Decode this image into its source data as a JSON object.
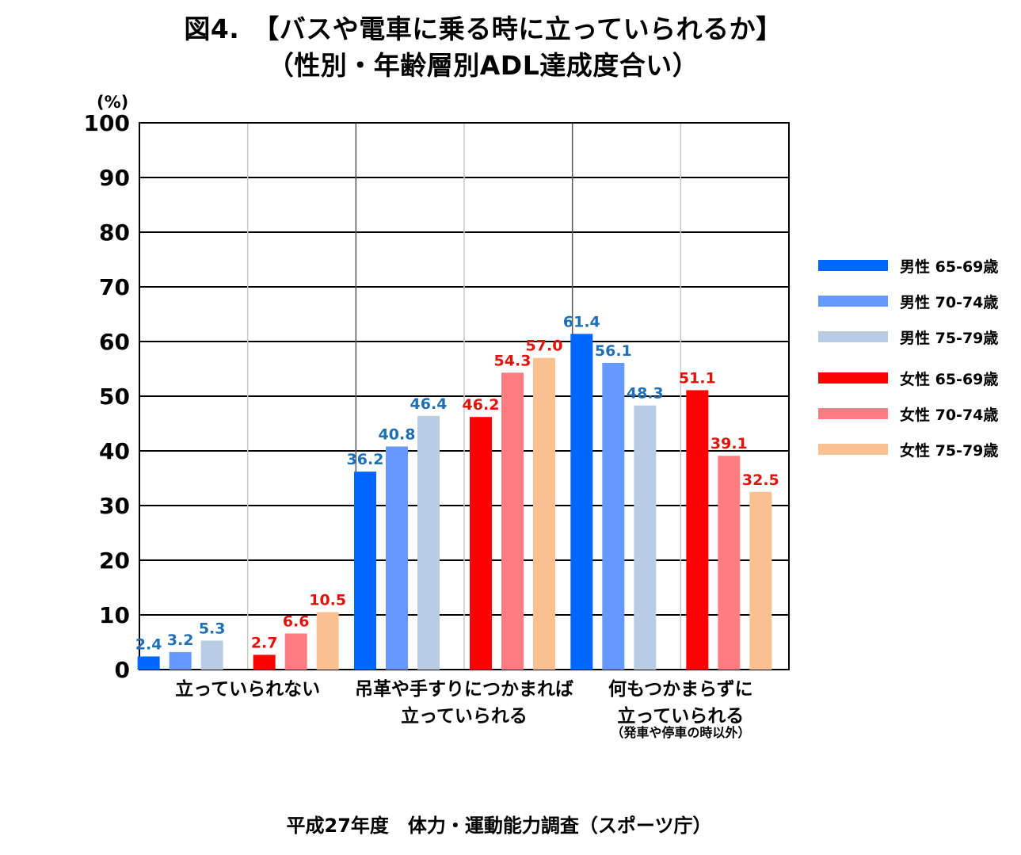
{
  "title_line1": "図4.　【バスや電車に乗る時に立っていられるか】",
  "title_line2": "（性別・年齢層別ADL達成度合い）",
  "footer": "平成27年度　体力・運動能力調査（スポーツ庁）",
  "chart_data": {
    "type": "bar",
    "yunit": "(%)",
    "ylim": [
      0,
      100
    ],
    "yticks": [
      0,
      10,
      20,
      30,
      40,
      50,
      60,
      70,
      80,
      90,
      100
    ],
    "grid": true,
    "legend_position": "right",
    "categories": [
      {
        "lines": [
          "立っていられない"
        ],
        "note": ""
      },
      {
        "lines": [
          "吊革や手すりにつかまれば",
          "立っていられる"
        ],
        "note": ""
      },
      {
        "lines": [
          "何もつかまらずに",
          "立っていられる"
        ],
        "note": "（発車や停車の時以外）"
      }
    ],
    "series": [
      {
        "name": "男性 65-69歳",
        "color": "#0066ff",
        "label_color": "#1f6fb4",
        "values": [
          2.4,
          36.2,
          61.4
        ]
      },
      {
        "name": "男性 70-74歳",
        "color": "#6699ff",
        "label_color": "#1f6fb4",
        "values": [
          3.2,
          40.8,
          56.1
        ]
      },
      {
        "name": "男性 75-79歳",
        "color": "#b8cce4",
        "label_color": "#1f6fb4",
        "values": [
          5.3,
          46.4,
          48.3
        ]
      },
      {
        "name": "女性 65-69歳",
        "color": "#ff0000",
        "label_color": "#e3120b",
        "values": [
          2.7,
          46.2,
          51.1
        ]
      },
      {
        "name": "女性 70-74歳",
        "color": "#ff7c80",
        "label_color": "#e3120b",
        "values": [
          6.6,
          54.3,
          39.1
        ]
      },
      {
        "name": "女性 75-79歳",
        "color": "#fac090",
        "label_color": "#e3120b",
        "values": [
          10.5,
          57.0,
          32.5
        ]
      }
    ]
  }
}
